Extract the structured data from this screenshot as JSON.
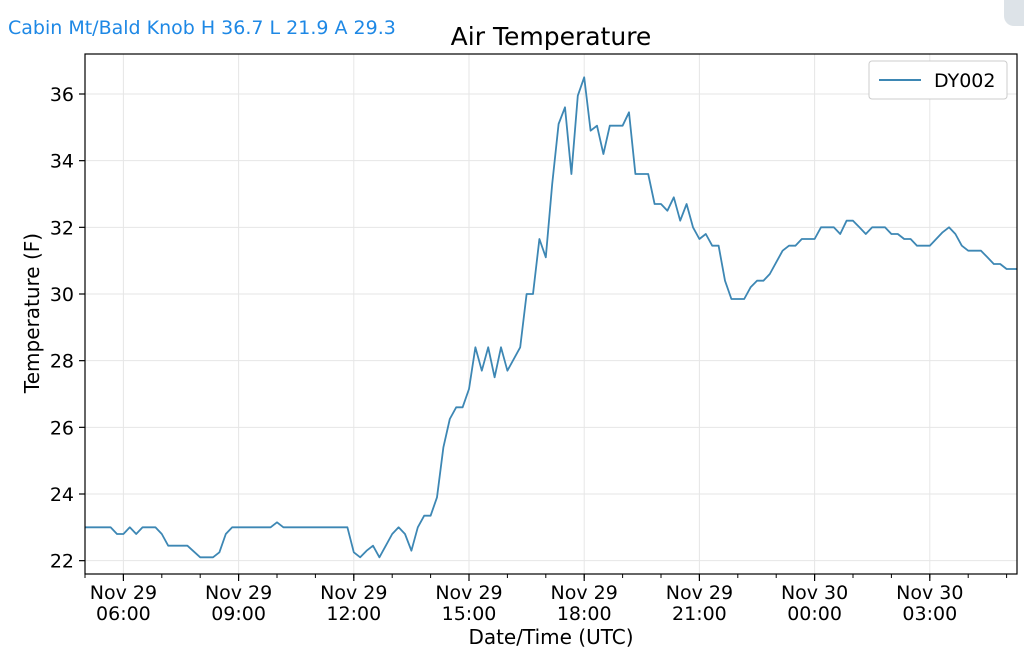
{
  "header": {
    "station_summary": "Cabin Mt/Bald Knob H 36.7 L 21.9 A 29.3"
  },
  "chart_data": {
    "type": "line",
    "title": "Air Temperature",
    "xlabel": "Date/Time (UTC)",
    "ylabel": "Temperature (F)",
    "xlim": [
      "2019-11-29T05:00",
      "2019-11-30T05:00"
    ],
    "ylim": [
      21.6,
      37.2
    ],
    "yticks": [
      22,
      24,
      26,
      28,
      30,
      32,
      34,
      36
    ],
    "xticks": [
      {
        "t": "2019-11-29T06:00",
        "line1": "Nov 29",
        "line2": "06:00"
      },
      {
        "t": "2019-11-29T09:00",
        "line1": "Nov 29",
        "line2": "09:00"
      },
      {
        "t": "2019-11-29T12:00",
        "line1": "Nov 29",
        "line2": "12:00"
      },
      {
        "t": "2019-11-29T15:00",
        "line1": "Nov 29",
        "line2": "15:00"
      },
      {
        "t": "2019-11-29T18:00",
        "line1": "Nov 29",
        "line2": "18:00"
      },
      {
        "t": "2019-11-29T21:00",
        "line1": "Nov 29",
        "line2": "21:00"
      },
      {
        "t": "2019-11-30T00:00",
        "line1": "Nov 30",
        "line2": "00:00"
      },
      {
        "t": "2019-11-30T03:00",
        "line1": "Nov 30",
        "line2": "03:00"
      }
    ],
    "grid": true,
    "legend_position": "top-right",
    "line_color": "#3d87b4",
    "series": [
      {
        "name": "DY002",
        "points": [
          [
            "2019-11-29T05:00",
            23.0
          ],
          [
            "2019-11-29T05:40",
            23.0
          ],
          [
            "2019-11-29T05:50",
            22.8
          ],
          [
            "2019-11-29T06:00",
            22.8
          ],
          [
            "2019-11-29T06:10",
            23.0
          ],
          [
            "2019-11-29T06:20",
            22.8
          ],
          [
            "2019-11-29T06:30",
            23.0
          ],
          [
            "2019-11-29T06:50",
            23.0
          ],
          [
            "2019-11-29T07:00",
            22.8
          ],
          [
            "2019-11-29T07:10",
            22.45
          ],
          [
            "2019-11-29T07:40",
            22.45
          ],
          [
            "2019-11-29T08:00",
            22.1
          ],
          [
            "2019-11-29T08:20",
            22.1
          ],
          [
            "2019-11-29T08:30",
            22.25
          ],
          [
            "2019-11-29T08:40",
            22.8
          ],
          [
            "2019-11-29T08:50",
            23.0
          ],
          [
            "2019-11-29T09:50",
            23.0
          ],
          [
            "2019-11-29T10:00",
            23.15
          ],
          [
            "2019-11-29T10:10",
            23.0
          ],
          [
            "2019-11-29T11:50",
            23.0
          ],
          [
            "2019-11-29T12:00",
            22.25
          ],
          [
            "2019-11-29T12:10",
            22.1
          ],
          [
            "2019-11-29T12:20",
            22.3
          ],
          [
            "2019-11-29T12:30",
            22.45
          ],
          [
            "2019-11-29T12:40",
            22.1
          ],
          [
            "2019-11-29T12:50",
            22.45
          ],
          [
            "2019-11-29T13:00",
            22.8
          ],
          [
            "2019-11-29T13:10",
            23.0
          ],
          [
            "2019-11-29T13:20",
            22.8
          ],
          [
            "2019-11-29T13:30",
            22.3
          ],
          [
            "2019-11-29T13:40",
            23.0
          ],
          [
            "2019-11-29T13:50",
            23.35
          ],
          [
            "2019-11-29T14:00",
            23.35
          ],
          [
            "2019-11-29T14:10",
            23.9
          ],
          [
            "2019-11-29T14:20",
            25.4
          ],
          [
            "2019-11-29T14:30",
            26.25
          ],
          [
            "2019-11-29T14:40",
            26.6
          ],
          [
            "2019-11-29T14:50",
            26.6
          ],
          [
            "2019-11-29T15:00",
            27.15
          ],
          [
            "2019-11-29T15:10",
            28.4
          ],
          [
            "2019-11-29T15:20",
            27.7
          ],
          [
            "2019-11-29T15:30",
            28.4
          ],
          [
            "2019-11-29T15:40",
            27.5
          ],
          [
            "2019-11-29T15:50",
            28.4
          ],
          [
            "2019-11-29T16:00",
            27.7
          ],
          [
            "2019-11-29T16:20",
            28.4
          ],
          [
            "2019-11-29T16:30",
            30.0
          ],
          [
            "2019-11-29T16:40",
            30.0
          ],
          [
            "2019-11-29T16:50",
            31.65
          ],
          [
            "2019-11-29T17:00",
            31.1
          ],
          [
            "2019-11-29T17:10",
            33.3
          ],
          [
            "2019-11-29T17:20",
            35.1
          ],
          [
            "2019-11-29T17:30",
            35.6
          ],
          [
            "2019-11-29T17:40",
            33.6
          ],
          [
            "2019-11-29T17:50",
            35.95
          ],
          [
            "2019-11-29T18:00",
            36.5
          ],
          [
            "2019-11-29T18:10",
            34.9
          ],
          [
            "2019-11-29T18:20",
            35.05
          ],
          [
            "2019-11-29T18:30",
            34.2
          ],
          [
            "2019-11-29T18:40",
            35.05
          ],
          [
            "2019-11-29T19:00",
            35.05
          ],
          [
            "2019-11-29T19:10",
            35.45
          ],
          [
            "2019-11-29T19:20",
            33.6
          ],
          [
            "2019-11-29T19:40",
            33.6
          ],
          [
            "2019-11-29T19:50",
            32.7
          ],
          [
            "2019-11-29T20:00",
            32.7
          ],
          [
            "2019-11-29T20:10",
            32.5
          ],
          [
            "2019-11-29T20:20",
            32.9
          ],
          [
            "2019-11-29T20:30",
            32.2
          ],
          [
            "2019-11-29T20:40",
            32.7
          ],
          [
            "2019-11-29T20:50",
            32.0
          ],
          [
            "2019-11-29T21:00",
            31.65
          ],
          [
            "2019-11-29T21:10",
            31.8
          ],
          [
            "2019-11-29T21:20",
            31.45
          ],
          [
            "2019-11-29T21:30",
            31.45
          ],
          [
            "2019-11-29T21:40",
            30.4
          ],
          [
            "2019-11-29T21:50",
            29.85
          ],
          [
            "2019-11-29T22:10",
            29.85
          ],
          [
            "2019-11-29T22:20",
            30.2
          ],
          [
            "2019-11-29T22:30",
            30.4
          ],
          [
            "2019-11-29T22:40",
            30.4
          ],
          [
            "2019-11-29T22:50",
            30.6
          ],
          [
            "2019-11-29T23:00",
            30.95
          ],
          [
            "2019-11-29T23:10",
            31.3
          ],
          [
            "2019-11-29T23:20",
            31.45
          ],
          [
            "2019-11-29T23:30",
            31.45
          ],
          [
            "2019-11-29T23:40",
            31.65
          ],
          [
            "2019-11-30T00:00",
            31.65
          ],
          [
            "2019-11-30T00:10",
            32.0
          ],
          [
            "2019-11-30T00:30",
            32.0
          ],
          [
            "2019-11-30T00:40",
            31.8
          ],
          [
            "2019-11-30T00:50",
            32.2
          ],
          [
            "2019-11-30T01:00",
            32.2
          ],
          [
            "2019-11-30T01:10",
            32.0
          ],
          [
            "2019-11-30T01:20",
            31.8
          ],
          [
            "2019-11-30T01:30",
            32.0
          ],
          [
            "2019-11-30T01:50",
            32.0
          ],
          [
            "2019-11-30T02:00",
            31.8
          ],
          [
            "2019-11-30T02:10",
            31.8
          ],
          [
            "2019-11-30T02:20",
            31.65
          ],
          [
            "2019-11-30T02:30",
            31.65
          ],
          [
            "2019-11-30T02:40",
            31.45
          ],
          [
            "2019-11-30T03:00",
            31.45
          ],
          [
            "2019-11-30T03:10",
            31.65
          ],
          [
            "2019-11-30T03:20",
            31.85
          ],
          [
            "2019-11-30T03:30",
            32.0
          ],
          [
            "2019-11-30T03:40",
            31.8
          ],
          [
            "2019-11-30T03:50",
            31.45
          ],
          [
            "2019-11-30T04:00",
            31.3
          ],
          [
            "2019-11-30T04:20",
            31.3
          ],
          [
            "2019-11-30T04:30",
            31.1
          ],
          [
            "2019-11-30T04:40",
            30.9
          ],
          [
            "2019-11-30T04:50",
            30.9
          ],
          [
            "2019-11-30T05:00",
            30.75
          ],
          [
            "2019-11-30T05:20",
            30.75
          ]
        ]
      }
    ]
  }
}
